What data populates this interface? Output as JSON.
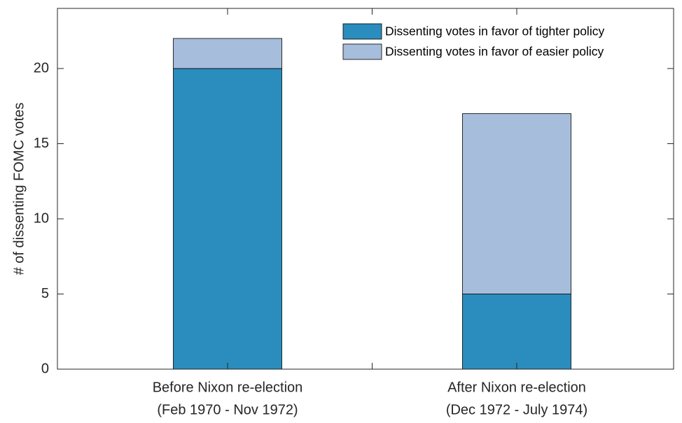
{
  "chart_data": {
    "type": "bar",
    "stacked": true,
    "y_label": "# of dissenting FOMC votes",
    "categories": [
      [
        "Before Nixon re-election",
        "(Feb 1970 - Nov 1972)"
      ],
      null,
      [
        "After Nixon re-election",
        "(Dec 1972 - July 1974)"
      ]
    ],
    "series": [
      {
        "name": "Dissenting votes in favor of tighter policy",
        "color": "#2b8cbe",
        "values": [
          20,
          0,
          5
        ]
      },
      {
        "name": "Dissenting votes in favor of easier policy",
        "color": "#a6bddb",
        "values": [
          2,
          0,
          12
        ]
      }
    ],
    "ylim": [
      0,
      24
    ],
    "yticks": [
      0,
      5,
      10,
      15,
      20
    ],
    "legend": "upper right"
  }
}
